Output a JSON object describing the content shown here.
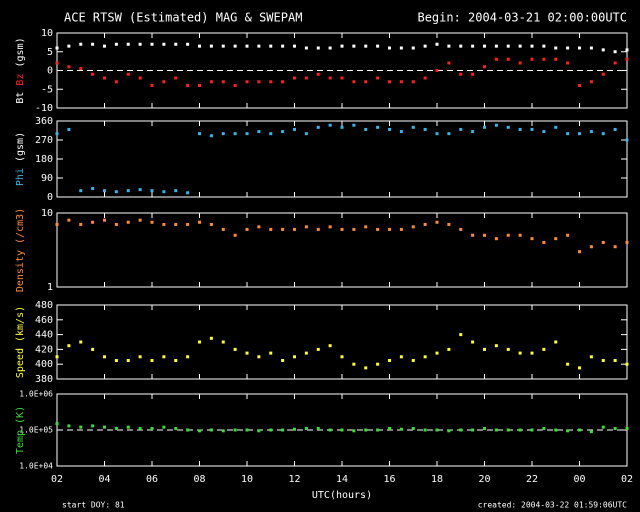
{
  "title": "ACE RTSW (Estimated) MAG & SWEPAM",
  "begin": "Begin: 2004-03-21 02:00:00UTC",
  "xlabel": "UTC(hours)",
  "start_doy": "start DOY:  81",
  "created": "created: 2004-03-22 01:59:06UTC",
  "xlim": [
    0,
    24
  ],
  "xticks": [
    {
      "value": 0,
      "label": "02"
    },
    {
      "value": 2,
      "label": "04"
    },
    {
      "value": 4,
      "label": "06"
    },
    {
      "value": 6,
      "label": "08"
    },
    {
      "value": 8,
      "label": "10"
    },
    {
      "value": 10,
      "label": "12"
    },
    {
      "value": 12,
      "label": "14"
    },
    {
      "value": 14,
      "label": "16"
    },
    {
      "value": 16,
      "label": "18"
    },
    {
      "value": 18,
      "label": "20"
    },
    {
      "value": 20,
      "label": "22"
    },
    {
      "value": 22,
      "label": "00"
    },
    {
      "value": 24,
      "label": "02"
    }
  ],
  "x": [
    0,
    0.5,
    1,
    1.5,
    2,
    2.5,
    3,
    3.5,
    4,
    4.5,
    5,
    5.5,
    6,
    6.5,
    7,
    7.5,
    8,
    8.5,
    9,
    9.5,
    10,
    10.5,
    11,
    11.5,
    12,
    12.5,
    13,
    13.5,
    14,
    14.5,
    15,
    15.5,
    16,
    16.5,
    17,
    17.5,
    18,
    18.5,
    19,
    19.5,
    20,
    20.5,
    21,
    21.5,
    22,
    22.5,
    23,
    23.5,
    24
  ],
  "chart_data": [
    {
      "type": "scatter",
      "ylabel": "(gsm)",
      "label_color": "#ffffff",
      "ylim": [
        -10,
        10
      ],
      "yticks": [
        -10,
        -5,
        0,
        5,
        10
      ],
      "hline": 0,
      "series": [
        {
          "name": "Bt",
          "color": "#ffffff",
          "values": [
            6,
            6.5,
            7,
            7,
            6.5,
            7,
            7,
            7,
            7,
            7,
            7,
            7,
            6.5,
            6.5,
            6.5,
            6.5,
            6.5,
            6.5,
            6.5,
            6.5,
            6.5,
            6,
            6,
            6,
            6.5,
            6.5,
            6.5,
            6.5,
            6,
            6,
            6,
            6.5,
            7,
            6.5,
            6.5,
            6.5,
            6.5,
            6.5,
            6.5,
            6.5,
            6.5,
            6.5,
            6,
            6,
            6,
            6,
            5.5,
            5,
            5.5
          ]
        },
        {
          "name": "Bz",
          "color": "#ff2020",
          "values": [
            2,
            1,
            0.5,
            -1,
            -2,
            -3,
            -1,
            -2,
            -4,
            -3,
            -2,
            -4,
            -4,
            -3,
            -3,
            -4,
            -3,
            -3,
            -3,
            -3,
            -2,
            -2,
            -1,
            -2,
            -2,
            -3,
            -3,
            -2,
            -3,
            -3,
            -3,
            -2,
            0,
            2,
            -1,
            -1,
            1,
            3,
            3,
            2,
            3,
            3,
            3,
            2,
            -4,
            -3,
            -1,
            2,
            3
          ]
        }
      ]
    },
    {
      "type": "scatter",
      "ylabel": "(gsm)",
      "label_color": "#ffffff",
      "ylim": [
        0,
        360
      ],
      "yticks": [
        0,
        90,
        180,
        270,
        360
      ],
      "series": [
        {
          "name": "Phi",
          "color": "#3cb4e6",
          "values": [
            300,
            320,
            30,
            40,
            30,
            25,
            30,
            35,
            30,
            25,
            30,
            20,
            300,
            290,
            300,
            300,
            300,
            310,
            300,
            310,
            320,
            300,
            330,
            340,
            330,
            340,
            320,
            330,
            320,
            310,
            330,
            320,
            300,
            300,
            320,
            310,
            330,
            340,
            330,
            320,
            320,
            310,
            330,
            300,
            300,
            310,
            300,
            320,
            270
          ]
        }
      ]
    },
    {
      "type": "scatter",
      "ylabel": "(/cm3)",
      "label_color": "#ff8c3c",
      "log": true,
      "ylim": [
        1,
        10
      ],
      "yticks": [
        1,
        10
      ],
      "series": [
        {
          "name": "Density",
          "color": "#ff8c3c",
          "values": [
            7,
            8,
            7,
            7.5,
            8,
            7,
            7.5,
            8,
            7.5,
            7,
            7,
            7,
            7.5,
            7,
            6,
            5,
            6,
            6.5,
            6,
            6,
            6,
            6.5,
            6,
            6.5,
            6,
            6,
            6.5,
            6,
            6,
            6,
            6.5,
            7,
            7.5,
            7,
            6,
            5,
            5,
            4.5,
            5,
            5,
            4.5,
            4,
            4.5,
            5,
            3,
            3.5,
            4,
            3.5,
            4
          ]
        }
      ]
    },
    {
      "type": "scatter",
      "ylabel": "(km/s)",
      "label_color": "#ffff3c",
      "ylim": [
        380,
        480
      ],
      "yticks": [
        380,
        400,
        420,
        440,
        460,
        480
      ],
      "series": [
        {
          "name": "Speed",
          "color": "#ffff3c",
          "values": [
            410,
            425,
            430,
            420,
            410,
            405,
            405,
            410,
            405,
            410,
            405,
            410,
            430,
            435,
            430,
            420,
            415,
            410,
            415,
            405,
            410,
            415,
            420,
            425,
            410,
            400,
            395,
            400,
            405,
            410,
            405,
            410,
            415,
            420,
            440,
            430,
            420,
            425,
            420,
            415,
            415,
            420,
            430,
            400,
            395,
            410,
            405,
            405,
            400
          ]
        }
      ]
    },
    {
      "type": "scatter",
      "ylabel": "(K)",
      "label_color": "#3cdc3c",
      "log": true,
      "ylim": [
        10000,
        1000000
      ],
      "hline": 100000,
      "yticks": [
        {
          "value": 10000,
          "label": "1.0E+04"
        },
        {
          "value": 100000,
          "label": "1.0E+05"
        },
        {
          "value": 1000000,
          "label": "1.0E+06"
        }
      ],
      "series": [
        {
          "name": "Temp",
          "color": "#3cdc3c",
          "values": [
            150000,
            130000,
            120000,
            130000,
            120000,
            110000,
            120000,
            110000,
            110000,
            120000,
            110000,
            100000,
            95000,
            100000,
            95000,
            100000,
            100000,
            95000,
            100000,
            100000,
            105000,
            110000,
            110000,
            100000,
            100000,
            95000,
            100000,
            100000,
            110000,
            105000,
            110000,
            100000,
            100000,
            95000,
            100000,
            100000,
            110000,
            100000,
            100000,
            100000,
            100000,
            110000,
            100000,
            95000,
            100000,
            90000,
            120000,
            110000,
            110000
          ]
        }
      ]
    }
  ]
}
